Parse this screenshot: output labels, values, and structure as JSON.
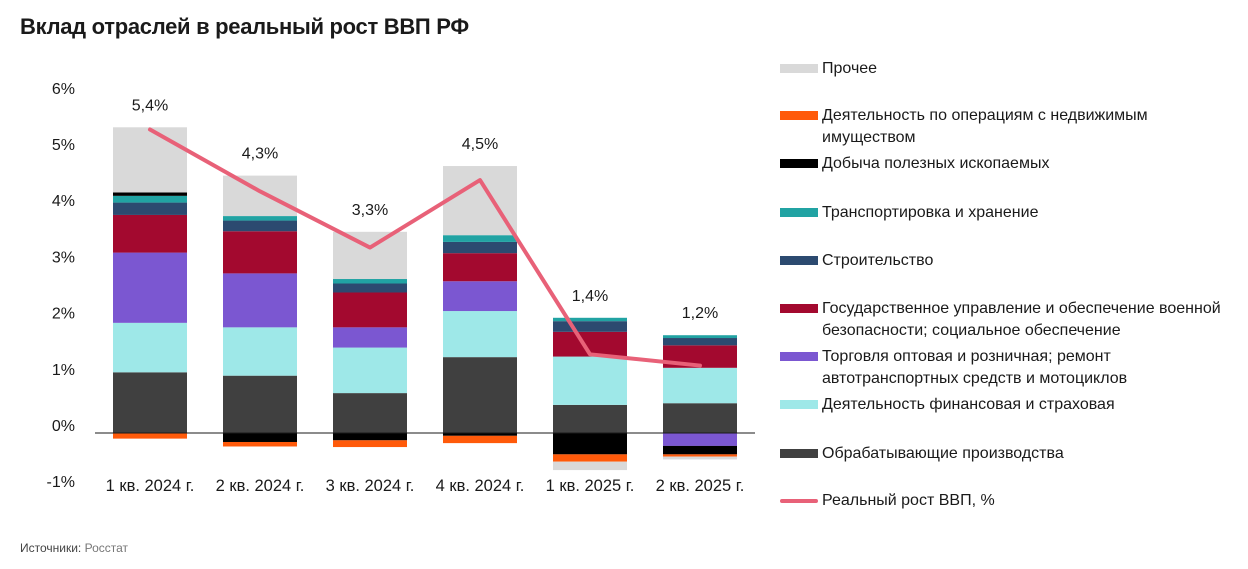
{
  "title": "Вклад отраслей в реальный рост ВВП РФ",
  "source": {
    "label": "Источники:",
    "value": "Росстат"
  },
  "colors": {
    "Обрабатывающие производства": "#404040",
    "Деятельность финансовая и страховая": "#9ee8e8",
    "Торговля": "#7b57d1",
    "Госуправление": "#a3092f",
    "Строительство": "#2c4a70",
    "Транспортировка": "#21a3a3",
    "Добыча": "#000000",
    "Недвижимость": "#ff5a0a",
    "Прочее": "#d9d9d9",
    "line": "#e86178"
  },
  "chart_data": {
    "type": "bar",
    "stacked": true,
    "title": "Вклад отраслей в реальный рост ВВП РФ",
    "categories": [
      "1 кв. 2024 г.",
      "2 кв. 2024 г.",
      "3 кв. 2024 г.",
      "4 кв. 2024 г.",
      "1 кв. 2025 г.",
      "2 кв. 2025 г."
    ],
    "ylim": [
      -1,
      6
    ],
    "yticks": [
      "-1%",
      "0%",
      "1%",
      "2%",
      "3%",
      "4%",
      "5%",
      "6%"
    ],
    "series": [
      {
        "name": "Обрабатывающие производства",
        "values": [
          1.08,
          1.02,
          0.71,
          1.35,
          0.5,
          0.53
        ]
      },
      {
        "name": "Деятельность финансовая и страховая",
        "values": [
          0.88,
          0.86,
          0.81,
          0.82,
          0.86,
          0.63
        ]
      },
      {
        "name": "Торговля оптовая и розничная; ремонт автотранспортных средств и мотоциклов",
        "values": [
          1.25,
          0.96,
          0.36,
          0.53,
          0.0,
          -0.23
        ]
      },
      {
        "name": "Государственное управление и обеспечение военной безопасности; социальное обеспечение",
        "values": [
          0.67,
          0.75,
          0.62,
          0.5,
          0.44,
          0.4
        ]
      },
      {
        "name": "Строительство",
        "values": [
          0.22,
          0.19,
          0.16,
          0.2,
          0.19,
          0.13
        ]
      },
      {
        "name": "Транспортировка и хранение",
        "values": [
          0.12,
          0.08,
          0.08,
          0.12,
          0.06,
          0.05
        ]
      },
      {
        "name": "Добыча полезных ископаемых",
        "values": [
          0.06,
          -0.16,
          -0.13,
          -0.05,
          -0.38,
          -0.15
        ]
      },
      {
        "name": "Деятельность по операциям с недвижимым имуществом",
        "values": [
          -0.1,
          -0.08,
          -0.12,
          -0.13,
          -0.13,
          -0.04
        ]
      },
      {
        "name": "Прочее",
        "values": [
          1.16,
          0.72,
          0.84,
          1.23,
          -0.15,
          -0.05
        ]
      }
    ],
    "line": {
      "name": "Реальный рост ВВП, %",
      "values": [
        5.4,
        4.3,
        3.3,
        4.5,
        1.4,
        1.2
      ],
      "labels": [
        "5,4%",
        "4,3%",
        "3,3%",
        "4,5%",
        "1,4%",
        "1,2%"
      ]
    }
  },
  "legend": [
    {
      "label": "Прочее",
      "color": "#d9d9d9",
      "kind": "box"
    },
    {
      "label": "Деятельность по операциям с недвижимым имуществом",
      "color": "#ff5a0a",
      "kind": "box"
    },
    {
      "label": "Добыча полезных ископаемых",
      "color": "#000000",
      "kind": "box"
    },
    {
      "label": "Транспортировка и хранение",
      "color": "#21a3a3",
      "kind": "box"
    },
    {
      "label": "Строительство",
      "color": "#2c4a70",
      "kind": "box"
    },
    {
      "label": "Государственное управление и обеспечение военной безопасности; социальное обеспечение",
      "color": "#a3092f",
      "kind": "box"
    },
    {
      "label": "Торговля оптовая и розничная; ремонт автотранспортных средств и мотоциклов",
      "color": "#7b57d1",
      "kind": "box"
    },
    {
      "label": "Деятельность финансовая и страховая",
      "color": "#9ee8e8",
      "kind": "box"
    },
    {
      "label": "Обрабатывающие производства",
      "color": "#404040",
      "kind": "box"
    },
    {
      "label": "Реальный рост ВВП, %",
      "color": "#e86178",
      "kind": "line"
    }
  ]
}
